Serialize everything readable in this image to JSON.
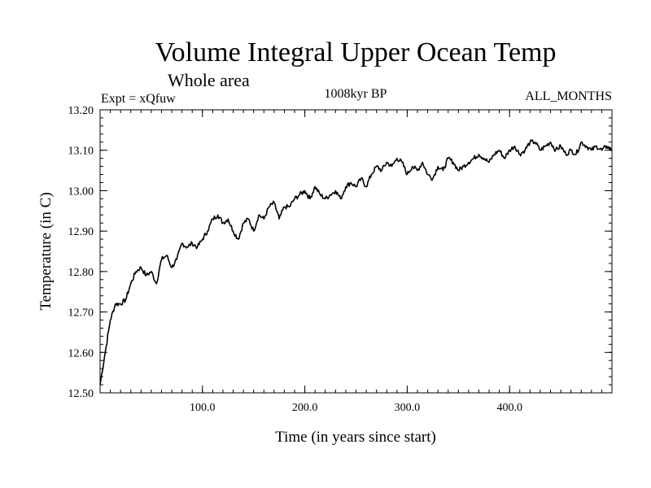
{
  "chart_data": {
    "type": "line",
    "title": "Volume Integral Upper Ocean Temp",
    "subtitle": "Whole area",
    "expt_label": "Expt = xQfuw",
    "period_label": "1008kyr BP",
    "months_label": "ALL_MONTHS",
    "xlabel": "Time (in years since start)",
    "ylabel": "Temperature (in C)",
    "xlim": [
      0,
      500
    ],
    "ylim": [
      12.5,
      13.2
    ],
    "x_ticks": [
      {
        "value": 100,
        "label": "100.0"
      },
      {
        "value": 200,
        "label": "200.0"
      },
      {
        "value": 300,
        "label": "300.0"
      },
      {
        "value": 400,
        "label": "400.0"
      }
    ],
    "y_ticks": [
      {
        "value": 12.5,
        "label": "12.50"
      },
      {
        "value": 12.6,
        "label": "12.60"
      },
      {
        "value": 12.7,
        "label": "12.70"
      },
      {
        "value": 12.8,
        "label": "12.80"
      },
      {
        "value": 12.9,
        "label": "12.90"
      },
      {
        "value": 13.0,
        "label": "13.00"
      },
      {
        "value": 13.1,
        "label": "13.10"
      },
      {
        "value": 13.2,
        "label": "13.20"
      }
    ],
    "series": [
      {
        "name": "Temperature",
        "x": [
          0,
          5,
          10,
          15,
          20,
          25,
          30,
          35,
          40,
          45,
          50,
          55,
          60,
          65,
          70,
          75,
          80,
          85,
          90,
          95,
          100,
          105,
          110,
          115,
          120,
          125,
          130,
          135,
          140,
          145,
          150,
          155,
          160,
          165,
          170,
          175,
          180,
          185,
          190,
          195,
          200,
          205,
          210,
          215,
          220,
          225,
          230,
          235,
          240,
          245,
          250,
          255,
          260,
          265,
          270,
          275,
          280,
          285,
          290,
          295,
          300,
          305,
          310,
          315,
          320,
          325,
          330,
          335,
          340,
          345,
          350,
          355,
          360,
          365,
          370,
          375,
          380,
          385,
          390,
          395,
          400,
          405,
          410,
          415,
          420,
          425,
          430,
          435,
          440,
          445,
          450,
          455,
          460,
          465,
          470,
          475,
          480,
          485,
          490,
          495,
          500
        ],
        "values": [
          12.52,
          12.6,
          12.68,
          12.72,
          12.72,
          12.73,
          12.77,
          12.8,
          12.81,
          12.79,
          12.8,
          12.77,
          12.83,
          12.84,
          12.81,
          12.83,
          12.87,
          12.86,
          12.87,
          12.86,
          12.88,
          12.9,
          12.93,
          12.94,
          12.92,
          12.93,
          12.9,
          12.88,
          12.92,
          12.93,
          12.9,
          12.94,
          12.93,
          12.96,
          12.97,
          12.93,
          12.96,
          12.96,
          12.98,
          12.99,
          13.0,
          12.98,
          13.01,
          12.99,
          12.98,
          12.99,
          13.0,
          12.98,
          13.01,
          13.02,
          13.01,
          13.03,
          13.01,
          13.04,
          13.06,
          13.05,
          13.07,
          13.06,
          13.08,
          13.07,
          13.04,
          13.06,
          13.05,
          13.07,
          13.04,
          13.03,
          13.06,
          13.05,
          13.08,
          13.07,
          13.05,
          13.06,
          13.07,
          13.08,
          13.09,
          13.08,
          13.07,
          13.09,
          13.1,
          13.08,
          13.1,
          13.11,
          13.09,
          13.1,
          13.12,
          13.12,
          13.1,
          13.11,
          13.12,
          13.1,
          13.11,
          13.09,
          13.1,
          13.09,
          13.12,
          13.11,
          13.1,
          13.11,
          13.1,
          13.11,
          13.1
        ]
      }
    ]
  }
}
